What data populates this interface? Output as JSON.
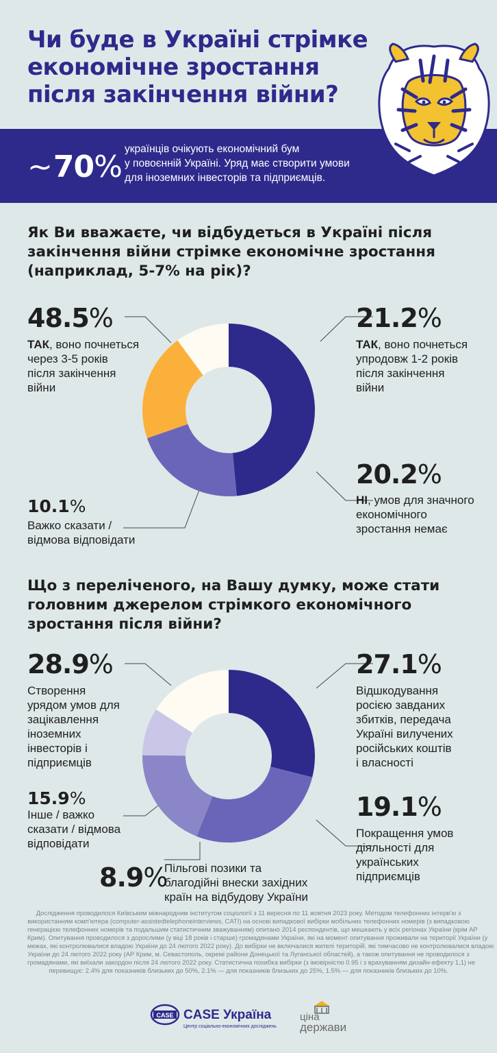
{
  "header": {
    "title_lines": [
      "Чи буде в Україні стрімке",
      "економічне зростання",
      "після закінчення війни?"
    ]
  },
  "banner": {
    "tilde": "~",
    "value": "70",
    "percent_sign": "%",
    "text_lines": [
      "українців очікують економічний бум",
      "у повоєнній Україні. Уряд має створити умови",
      "для іноземних інвесторів та підприємців."
    ]
  },
  "question1": {
    "lines": [
      "Як Ви вважаєте, чи відбудеться в Україні після",
      "закінчення війни стрімке економічне зростання",
      "(наприклад, 5-7% на рік)?"
    ]
  },
  "question2": {
    "lines": [
      "Що з переліченого, на Вашу думку, може стати",
      "головним джерелом стрімкого економічного",
      "зростання після війни?"
    ]
  },
  "chart_data": [
    {
      "type": "pie",
      "donut": true,
      "slices": [
        {
          "value": 48.5,
          "pct_text": "48.5",
          "bold": "ТАК",
          "label_lines": [
            ", воно почнеться",
            "через 3-5 років",
            "після закінчення",
            "війни"
          ],
          "color": "#2e2a8c"
        },
        {
          "value": 21.2,
          "pct_text": "21.2",
          "bold": "ТАК",
          "label_lines": [
            ", воно почнеться",
            "упродовж 1-2 років",
            "після закінчення",
            "війни"
          ],
          "color": "#6b65b9"
        },
        {
          "value": 20.2,
          "pct_text": "20.2",
          "bold": "НІ",
          "label_lines": [
            ", умов для значного",
            "економічного",
            "зростання немає"
          ],
          "color": "#fbb03b"
        },
        {
          "value": 10.1,
          "pct_text": "10.1",
          "bold": "",
          "label_lines": [
            "Важко сказати /",
            "відмова відповідати"
          ],
          "color": "#fdfbf2"
        }
      ]
    },
    {
      "type": "pie",
      "donut": true,
      "slices": [
        {
          "value": 28.9,
          "pct_text": "28.9",
          "label_lines": [
            "Створення",
            "урядом умов для",
            "зацікавлення",
            "іноземних",
            "інвесторів і",
            "підприємців"
          ],
          "color": "#2e2a8c"
        },
        {
          "value": 27.1,
          "pct_text": "27.1",
          "label_lines": [
            "Відшкодування",
            "росією завданих",
            "збитків, передача",
            "Україні вилучених",
            "російських коштів",
            "і власності"
          ],
          "color": "#6b65b9"
        },
        {
          "value": 19.1,
          "pct_text": "19.1",
          "label_lines": [
            "Покращення умов",
            "діяльності для",
            "українських",
            "підприємців"
          ],
          "color": "#8b86c8"
        },
        {
          "value": 8.9,
          "pct_text": "8.9",
          "label_lines": [
            "Пільгові позики та",
            "благодійні внески західних",
            "країн на відбудову України"
          ],
          "color": "#c9c6e8"
        },
        {
          "value": 15.9,
          "pct_text": "15.9",
          "label_lines": [
            "Інше / важко",
            "сказати / відмова",
            "відповідати"
          ],
          "color": "#fdfbf2"
        }
      ]
    }
  ],
  "footnote_lines": [
    "Дослідження проводилося Київським міжнародним інститутом соціології з 11 вересня по 11 жовтня 2023 року. Методом телефонних інтерв'ю з",
    "використанням комп'ютера (computer-assistedtelephoneinterviews, CATI) на основі випадкової вибірки мобільних телефонних номерів (з випадковою",
    "генерацією телефонних номерів та подальшим статистичним зважуванням) опитано 2014 респондентів, що мешкають у всіх регіонах України (крім АР",
    "Крим). Опитування проводилося з дорослими (у віці 18 років і старше) громадянами України, які на момент опитування проживали на території України (у",
    "межах, які контролювалися владою України до 24 лютого 2022 року). До вибірки не включалися жителі територій, які тимчасово не контролювалися владою",
    "України до 24 лютого 2022 року (АР Крим, м. Севастополь, окремі райони Донецької та Луганської областей), а також опитування не проводилося з",
    "громадянами, які виїхали закордон після 24 лютого 2022 року. Статистична похибка вибірки (з імовірністю 0.95 і з врахуванням дизайн-ефекту 1,1) не",
    "перевищує: 2.4% для показників близьких до 50%, 2.1% — для показників близьких до 25%, 1.5% — для показників близьких до 10%."
  ],
  "logos": {
    "case_badge": "CASE",
    "case_name": "CASE Україна",
    "case_sub": "Центр соціально-економічних досліджень",
    "cina_line1": "ціна",
    "cina_line2": "держави"
  },
  "colors": {
    "navy": "#2e2a8c",
    "purple": "#6b65b9",
    "lavender": "#8b86c8",
    "pale_lavender": "#c9c6e8",
    "orange": "#fbb03b",
    "cream": "#fdfbf2",
    "background": "#dfe8e9",
    "tiger_gold": "#f2c230"
  }
}
